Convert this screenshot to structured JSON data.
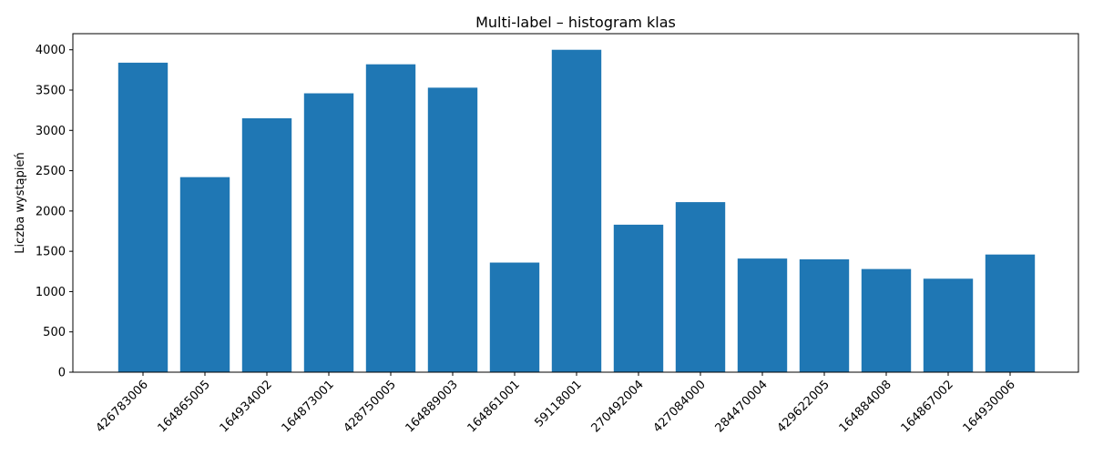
{
  "chart_data": {
    "type": "bar",
    "title": "Multi-label – histogram klas",
    "xlabel": "",
    "ylabel": "Liczba wystąpień",
    "categories": [
      "426783006",
      "164865005",
      "164934002",
      "164873001",
      "428750005",
      "164889003",
      "164861001",
      "59118001",
      "270492004",
      "427084000",
      "284470004",
      "429622005",
      "164884008",
      "164867002",
      "164930006"
    ],
    "values": [
      3840,
      2420,
      3150,
      3460,
      3820,
      3530,
      1360,
      4000,
      1830,
      2110,
      1410,
      1400,
      1280,
      1160,
      1460
    ],
    "ylim": [
      0,
      4200
    ],
    "yticks": [
      0,
      500,
      1000,
      1500,
      2000,
      2500,
      3000,
      3500,
      4000
    ],
    "grid": false,
    "bar_color": "#1f77b4",
    "xtick_rotation": 45
  }
}
